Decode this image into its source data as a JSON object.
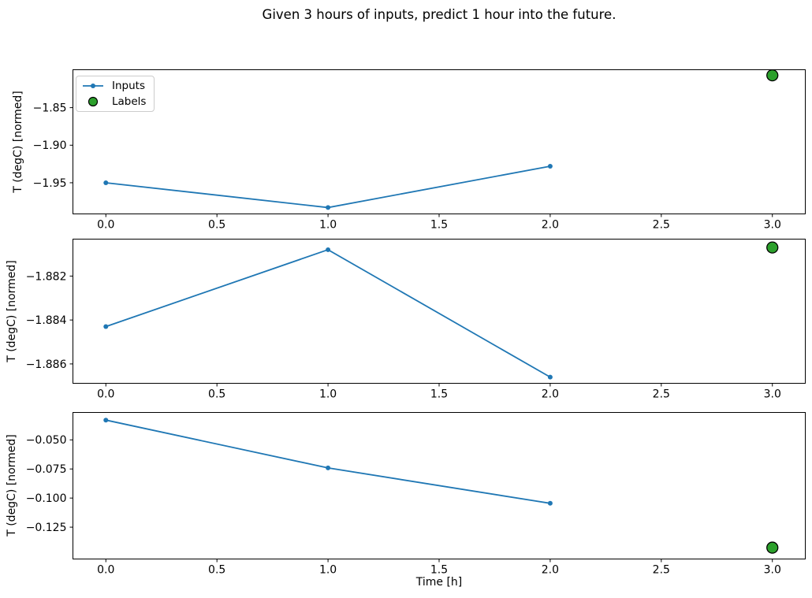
{
  "title": "Given 3 hours of inputs, predict 1 hour into the future.",
  "colors": {
    "inputs_line": "#1f77b4",
    "labels_fill": "#2ca02c",
    "labels_edge": "#000000",
    "axis": "#000000",
    "text": "#000000",
    "legend_border": "#cccccc",
    "background": "#ffffff"
  },
  "legend": {
    "items": [
      {
        "label": "Inputs",
        "marker": "blue-line-with-dot"
      },
      {
        "label": "Labels",
        "marker": "green-circle"
      }
    ],
    "position": "upper left"
  },
  "chart_data": [
    {
      "type": "line",
      "title": "",
      "xlabel": "",
      "ylabel": "T (degC) [normed]",
      "xlim": [
        -0.15,
        3.15
      ],
      "ylim": [
        -1.992,
        -1.799
      ],
      "x_ticks": [
        0.0,
        0.5,
        1.0,
        1.5,
        2.0,
        2.5,
        3.0
      ],
      "x_tick_labels": [
        "0.0",
        "0.5",
        "1.0",
        "1.5",
        "2.0",
        "2.5",
        "3.0"
      ],
      "y_ticks": [
        -1.95,
        -1.9,
        -1.85
      ],
      "y_tick_labels": [
        "−1.95",
        "−1.90",
        "−1.85"
      ],
      "grid": false,
      "legend": true,
      "series": [
        {
          "name": "Inputs",
          "style": "line-with-markers",
          "x": [
            0,
            1,
            2
          ],
          "y": [
            -1.95,
            -1.983,
            -1.928
          ]
        },
        {
          "name": "Labels",
          "style": "scatter",
          "x": [
            3
          ],
          "y": [
            -1.807
          ]
        }
      ]
    },
    {
      "type": "line",
      "title": "",
      "xlabel": "",
      "ylabel": "T (degC) [normed]",
      "xlim": [
        -0.15,
        3.15
      ],
      "ylim": [
        -1.8869,
        -1.8803
      ],
      "x_ticks": [
        0.0,
        0.5,
        1.0,
        1.5,
        2.0,
        2.5,
        3.0
      ],
      "x_tick_labels": [
        "0.0",
        "0.5",
        "1.0",
        "1.5",
        "2.0",
        "2.5",
        "3.0"
      ],
      "y_ticks": [
        -1.886,
        -1.884,
        -1.882
      ],
      "y_tick_labels": [
        "−1.886",
        "−1.884",
        "−1.882"
      ],
      "grid": false,
      "legend": false,
      "series": [
        {
          "name": "Inputs",
          "style": "line-with-markers",
          "x": [
            0,
            1,
            2
          ],
          "y": [
            -1.8843,
            -1.8808,
            -1.8866
          ]
        },
        {
          "name": "Labels",
          "style": "scatter",
          "x": [
            3
          ],
          "y": [
            -1.8807
          ]
        }
      ]
    },
    {
      "type": "line",
      "title": "",
      "xlabel": "Time [h]",
      "ylabel": "T (degC) [normed]",
      "xlim": [
        -0.15,
        3.15
      ],
      "ylim": [
        -0.1527,
        -0.0261
      ],
      "x_ticks": [
        0.0,
        0.5,
        1.0,
        1.5,
        2.0,
        2.5,
        3.0
      ],
      "x_tick_labels": [
        "0.0",
        "0.5",
        "1.0",
        "1.5",
        "2.0",
        "2.5",
        "3.0"
      ],
      "y_ticks": [
        -0.125,
        -0.1,
        -0.075,
        -0.05
      ],
      "y_tick_labels": [
        "−0.125",
        "−0.100",
        "−0.075",
        "−0.050"
      ],
      "grid": false,
      "legend": false,
      "series": [
        {
          "name": "Inputs",
          "style": "line-with-markers",
          "x": [
            0,
            1,
            2
          ],
          "y": [
            -0.033,
            -0.0741,
            -0.1045
          ]
        },
        {
          "name": "Labels",
          "style": "scatter",
          "x": [
            3
          ],
          "y": [
            -0.1426
          ]
        }
      ]
    }
  ]
}
